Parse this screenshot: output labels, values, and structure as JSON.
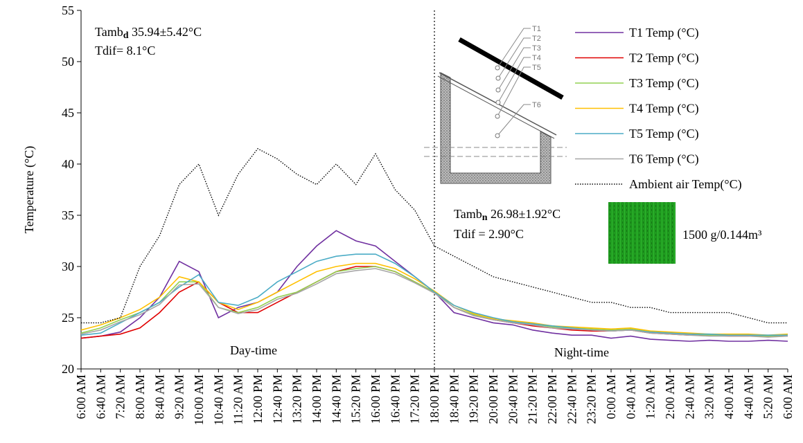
{
  "chart_data": {
    "type": "line",
    "y_label": "Temperature (°C)",
    "categories": [
      "6:00 AM",
      "6:40 AM",
      "7:20 AM",
      "8:00 AM",
      "8:40 AM",
      "9:20 AM",
      "10:00 AM",
      "10:40 AM",
      "11:20 AM",
      "12:00 PM",
      "12:40 PM",
      "13:20 PM",
      "14:00 PM",
      "14:40 PM",
      "15:20 PM",
      "16:00 PM",
      "16:40 PM",
      "17:20 PM",
      "18:00 PM",
      "18:40 PM",
      "19:20 PM",
      "20:00 PM",
      "20:40 PM",
      "21:20 PM",
      "22:00 PM",
      "22:40 PM",
      "23:20 PM",
      "0:00 AM",
      "0:40 AM",
      "1:20 AM",
      "2:00 AM",
      "2:40 AM",
      "3:20 AM",
      "4:00 AM",
      "4:40 AM",
      "5:20 AM",
      "6:00 AM"
    ],
    "ylim": [
      20,
      55
    ],
    "yticks": [
      20,
      25,
      30,
      35,
      40,
      45,
      50,
      55
    ],
    "grid": false,
    "legend": "upper right",
    "divider_category": "18:00 PM",
    "series": [
      {
        "name": "T1 Temp (°C)",
        "color": "#7030a0",
        "style": "solid",
        "values": [
          23,
          23.2,
          23.6,
          25,
          27,
          30.5,
          29.5,
          25,
          26,
          26.5,
          27.5,
          30,
          32,
          33.5,
          32.5,
          32,
          30.5,
          29,
          27.5,
          25.5,
          25,
          24.5,
          24.3,
          23.8,
          23.5,
          23.3,
          23.3,
          23,
          23.2,
          22.9,
          22.8,
          22.7,
          22.8,
          22.7,
          22.7,
          22.8,
          22.7
        ]
      },
      {
        "name": "T2 Temp (°C)",
        "color": "#e00000",
        "style": "solid",
        "values": [
          23,
          23.2,
          23.4,
          24,
          25.5,
          27.5,
          28.5,
          26.5,
          25.5,
          25.5,
          26.5,
          27.5,
          28.5,
          29.5,
          30,
          30,
          29.5,
          28.5,
          27.5,
          26,
          25.2,
          24.8,
          24.5,
          24.2,
          24,
          23.8,
          23.7,
          23.7,
          23.8,
          23.5,
          23.4,
          23.3,
          23.3,
          23.2,
          23.2,
          23.2,
          23.2
        ]
      },
      {
        "name": "T3 Temp (°C)",
        "color": "#92d050",
        "style": "solid",
        "values": [
          23.5,
          24,
          24.8,
          25.5,
          26.5,
          28.5,
          28.5,
          26,
          25.5,
          26,
          27,
          27.5,
          28.5,
          29.5,
          29.8,
          30,
          29.5,
          28.5,
          27.5,
          26,
          25.3,
          24.8,
          24.6,
          24.4,
          24.1,
          24,
          23.9,
          23.8,
          23.9,
          23.6,
          23.5,
          23.4,
          23.3,
          23.3,
          23.3,
          23.2,
          23.3
        ]
      },
      {
        "name": "T4 Temp (°C)",
        "color": "#ffc000",
        "style": "solid",
        "values": [
          23.8,
          24.3,
          25,
          25.8,
          27,
          29,
          28.5,
          26.5,
          25.8,
          26.5,
          27.5,
          28.5,
          29.5,
          30,
          30.3,
          30.3,
          29.8,
          28.8,
          27.6,
          26.2,
          25.4,
          24.9,
          24.7,
          24.5,
          24.2,
          24.1,
          24,
          23.9,
          24,
          23.7,
          23.6,
          23.5,
          23.4,
          23.4,
          23.4,
          23.3,
          23.4
        ]
      },
      {
        "name": "T5 Temp (°C)",
        "color": "#4bacc6",
        "style": "solid",
        "values": [
          23.3,
          23.5,
          24.5,
          25.5,
          26.5,
          28,
          29.2,
          26.5,
          26.2,
          27,
          28.5,
          29.5,
          30.5,
          31,
          31.2,
          31.2,
          30.3,
          29,
          27.5,
          26.2,
          25.5,
          25,
          24.6,
          24.4,
          24.2,
          24,
          23.8,
          23.7,
          23.8,
          23.6,
          23.5,
          23.4,
          23.4,
          23.3,
          23.3,
          23.3,
          23.3
        ]
      },
      {
        "name": "T6 Temp (°C)",
        "color": "#a6a6a6",
        "style": "solid",
        "values": [
          23.4,
          23.8,
          24.6,
          25.3,
          26.3,
          28.2,
          28.3,
          26,
          25.4,
          25.8,
          26.8,
          27.4,
          28.3,
          29.3,
          29.6,
          29.8,
          29.3,
          28.4,
          27.4,
          26,
          25.2,
          24.8,
          24.5,
          24.3,
          24,
          23.9,
          23.8,
          23.7,
          23.8,
          23.5,
          23.4,
          23.3,
          23.2,
          23.2,
          23.2,
          23.1,
          23.2
        ]
      },
      {
        "name": "Ambient air Temp(°C)",
        "color": "#000000",
        "style": "dotted",
        "values": [
          24.5,
          24.5,
          25,
          30,
          33,
          38,
          40,
          35,
          39,
          41.5,
          40.5,
          39,
          38,
          40,
          38,
          41,
          37.5,
          35.5,
          32,
          31,
          30,
          29,
          28.5,
          28,
          27.5,
          27,
          26.5,
          26.5,
          26,
          26,
          25.5,
          25.5,
          25.5,
          25.5,
          25,
          24.5,
          24.5
        ]
      }
    ],
    "annotations": {
      "day_stats": {
        "main": "Tamb",
        "sub": "d",
        "rest": " 35.94±5.42°C"
      },
      "day_tdif": "Tdif= 8.1°C",
      "night_stats": {
        "main": "Tamb",
        "sub": "n",
        "rest": " 26.98±1.92°C"
      },
      "night_tdif": "Tdif = 2.90°C",
      "day_label": "Day-time",
      "night_label": "Night-time",
      "sample": "1500 g/0.144m³",
      "sensors": [
        "T1",
        "T2",
        "T3",
        "T4",
        "T5",
        "T6"
      ]
    }
  }
}
